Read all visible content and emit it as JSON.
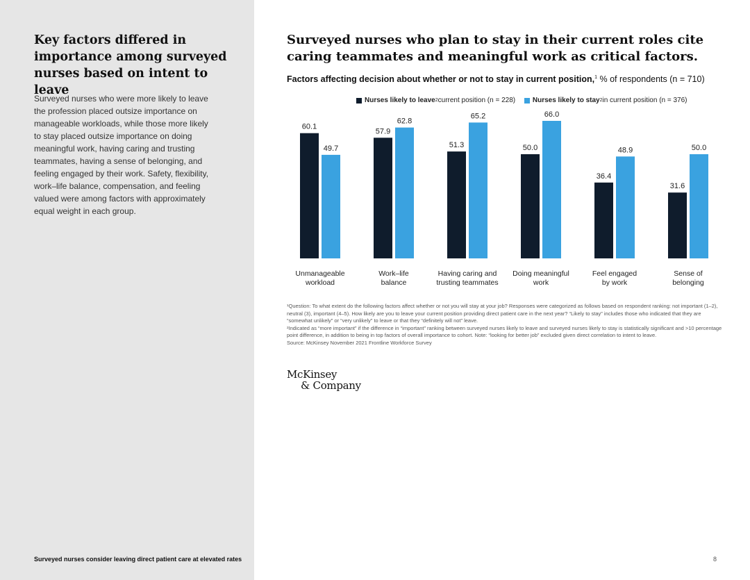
{
  "left": {
    "heading": "Key factors differed in importance among surveyed nurses based on intent to leave",
    "body": "Surveyed nurses who were more likely to leave the profession placed outsize importance on manageable workloads, while those more likely to stay placed outsize importance on doing meaningful work, having caring and trusting teammates, having a sense of belonging, and feeling engaged by their work. Safety, flexibility, work–life balance, compensation, and feeling valued were among factors with approximately equal weight in each group.",
    "footer": "Surveyed nurses consider leaving direct patient care at elevated rates"
  },
  "main": {
    "title": "Surveyed nurses who plan to stay in their current roles cite caring teammates and meaningful work as critical factors.",
    "subtitle_bold": "Factors affecting decision about whether or not to stay in current position,",
    "subtitle_sup": "1",
    "subtitle_rest": " % of respondents (n = 710)"
  },
  "legend": {
    "leave_bold": "Nurses likely to leave",
    "leave_sup": "2",
    "leave_rest": " current position (n = 228)",
    "stay_bold": "Nurses likely to stay",
    "stay_sup": "2",
    "stay_rest": " in current position (n = 376)"
  },
  "chart_data": {
    "type": "bar",
    "categories": [
      [
        "Unmanageable",
        "workload"
      ],
      [
        "Work–life",
        "balance"
      ],
      [
        "Having caring and",
        "trusting teammates"
      ],
      [
        "Doing meaningful",
        "work"
      ],
      [
        "Feel engaged",
        "by work"
      ],
      [
        "Sense of",
        "belonging"
      ]
    ],
    "series": [
      {
        "name": "Nurses likely to leave current position (n = 228)",
        "values": [
          60.1,
          57.9,
          51.3,
          50.0,
          36.4,
          31.6
        ],
        "labels": [
          "60.1",
          "57.9",
          "51.3",
          "50.0",
          "36.4",
          "31.6"
        ],
        "color": "#0f1c2c"
      },
      {
        "name": "Nurses likely to stay in current position (n = 376)",
        "values": [
          49.7,
          62.8,
          65.2,
          66.0,
          48.9,
          50.0
        ],
        "labels": [
          "49.7",
          "62.8",
          "65.2",
          "66.0",
          "48.9",
          "50.0"
        ],
        "color": "#3aa2e0"
      }
    ],
    "grid": false,
    "legend_position": "top"
  },
  "footnotes": [
    "¹Question: To what extent do the following factors affect whether or not you will stay at your job? Responses were categorized as follows based on respondent ranking: not important (1–2), neutral (3), important (4–5). How likely are you to leave your current position providing direct patient care in the next year? “Likely to stay” includes those who indicated that they are “somewhat unlikely” or “very unlikely” to leave or that they “definitely will not” leave.",
    "²Indicated as “more important” if the difference in “important” ranking between surveyed nurses likely to leave and surveyed nurses likely to stay is statistically significant and >10 percentage point difference, in addition to being in top factors of overall importance to cohort. Note: “looking for better job” excluded given direct correlation to intent to leave.",
    "Source: McKinsey November 2021 Frontline Workforce Survey"
  ],
  "logo": {
    "line1": "McKinsey",
    "line2": "& Company"
  },
  "page_number": "8"
}
